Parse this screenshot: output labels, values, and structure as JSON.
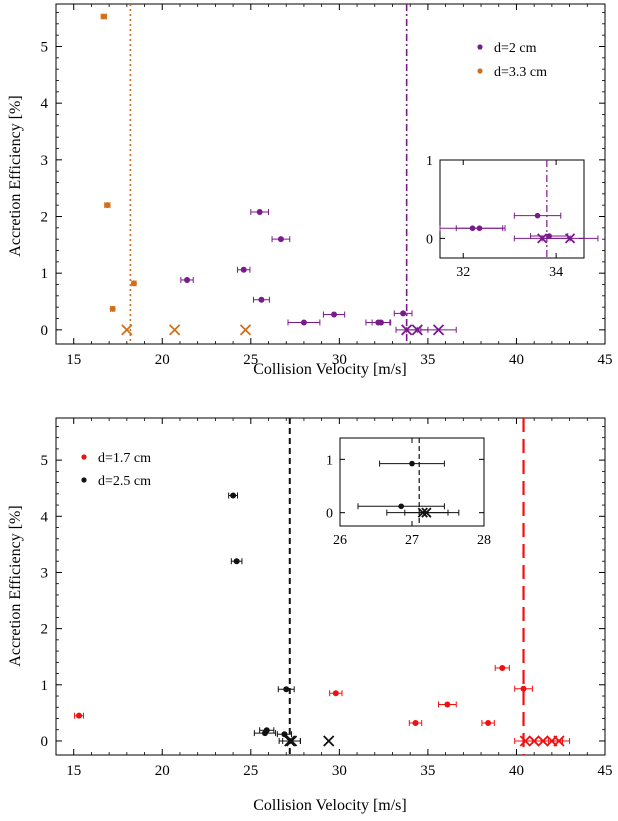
{
  "colors": {
    "purple": "#7a1a8c",
    "orange": "#d0701c",
    "red": "#ee1111",
    "black": "#111111"
  },
  "chart_data": [
    {
      "type": "scatter",
      "title": "",
      "xlabel": "Collision Velocity [m/s]",
      "ylabel": "Accretion Efficiency [%]",
      "xlim": [
        14,
        45
      ],
      "ylim": [
        -0.25,
        5.75
      ],
      "xticks": [
        15,
        20,
        25,
        30,
        35,
        40,
        45
      ],
      "yticks": [
        0,
        1,
        2,
        3,
        4,
        5
      ],
      "legend_position": "top-right",
      "series": [
        {
          "name": "d=2 cm",
          "color": "#7a1a8c",
          "points": [
            {
              "x": 21.4,
              "y": 0.88,
              "xerr": 0.35
            },
            {
              "x": 24.6,
              "y": 1.06,
              "xerr": 0.35
            },
            {
              "x": 25.5,
              "y": 2.08,
              "xerr": 0.5
            },
            {
              "x": 25.6,
              "y": 0.53,
              "xerr": 0.45
            },
            {
              "x": 26.7,
              "y": 1.6,
              "xerr": 0.5
            },
            {
              "x": 28.0,
              "y": 0.13,
              "xerr": 0.9
            },
            {
              "x": 29.7,
              "y": 0.27,
              "xerr": 0.6
            },
            {
              "x": 32.2,
              "y": 0.13,
              "xerr": 0.7
            },
            {
              "x": 32.35,
              "y": 0.13,
              "xerr": 0.5
            },
            {
              "x": 33.6,
              "y": 0.29,
              "xerr": 0.5
            }
          ],
          "zero_markers": [
            {
              "x": 33.8,
              "y": 0,
              "xerr": 0.6
            },
            {
              "x": 34.4,
              "y": 0,
              "xerr": 0.6
            },
            {
              "x": 35.6,
              "y": 0,
              "xerr": 1.0
            }
          ],
          "threshold_x": 33.8,
          "threshold_style": "dash-dot"
        },
        {
          "name": "d=3.3 cm",
          "color": "#d0701c",
          "points": [
            {
              "x": 16.7,
              "y": 5.53,
              "xerr": 0.15
            },
            {
              "x": 16.9,
              "y": 2.2,
              "xerr": 0.15
            },
            {
              "x": 17.2,
              "y": 0.37,
              "xerr": 0.12
            },
            {
              "x": 18.4,
              "y": 0.82,
              "xerr": 0.12
            }
          ],
          "zero_markers": [
            {
              "x": 18.0,
              "y": 0,
              "xerr": 0
            },
            {
              "x": 20.7,
              "y": 0,
              "xerr": 0
            },
            {
              "x": 24.7,
              "y": 0,
              "xerr": 0
            }
          ],
          "threshold_x": 18.2,
          "threshold_style": "dotted"
        }
      ],
      "inset": {
        "xlim": [
          31.5,
          34.6
        ],
        "ylim": [
          -0.25,
          1.0
        ],
        "xticks": [
          32,
          34
        ],
        "yticks": [
          0,
          1
        ],
        "points": [
          {
            "x": 32.2,
            "y": 0.13,
            "xerr": 0.7
          },
          {
            "x": 32.35,
            "y": 0.13,
            "xerr": 0.5
          },
          {
            "x": 33.6,
            "y": 0.29,
            "xerr": 0.5
          },
          {
            "x": 33.85,
            "y": 0.03,
            "xerr": 0.4
          }
        ],
        "zero_markers": [
          {
            "x": 33.7,
            "y": 0,
            "xerr": 0.6
          },
          {
            "x": 34.3,
            "y": 0,
            "xerr": 0.6
          }
        ],
        "threshold_x": 33.8,
        "color": "#7a1a8c"
      }
    },
    {
      "type": "scatter",
      "title": "",
      "xlabel": "Collision Velocity [m/s]",
      "ylabel": "Accretion Efficiency [%]",
      "xlim": [
        14,
        45
      ],
      "ylim": [
        -0.25,
        5.75
      ],
      "xticks": [
        15,
        20,
        25,
        30,
        35,
        40,
        45
      ],
      "yticks": [
        0,
        1,
        2,
        3,
        4,
        5
      ],
      "legend_position": "top-left",
      "series": [
        {
          "name": "d=1.7 cm",
          "color": "#ee1111",
          "points": [
            {
              "x": 15.3,
              "y": 0.45,
              "xerr": 0.25
            },
            {
              "x": 29.8,
              "y": 0.85,
              "xerr": 0.35
            },
            {
              "x": 34.3,
              "y": 0.32,
              "xerr": 0.35
            },
            {
              "x": 36.1,
              "y": 0.65,
              "xerr": 0.5
            },
            {
              "x": 38.4,
              "y": 0.32,
              "xerr": 0.35
            },
            {
              "x": 39.2,
              "y": 1.3,
              "xerr": 0.4
            },
            {
              "x": 40.4,
              "y": 0.93,
              "xerr": 0.5
            }
          ],
          "zero_markers": [
            {
              "x": 40.5,
              "y": 0,
              "xerr": 0.6
            },
            {
              "x": 41.0,
              "y": 0,
              "xerr": 0.6
            },
            {
              "x": 41.5,
              "y": 0,
              "xerr": 0.6
            },
            {
              "x": 42.0,
              "y": 0,
              "xerr": 0.6
            },
            {
              "x": 42.4,
              "y": 0,
              "xerr": 0.6
            }
          ],
          "threshold_x": 40.4,
          "threshold_style": "long-dash"
        },
        {
          "name": "d=2.5 cm",
          "color": "#111111",
          "points": [
            {
              "x": 24.0,
              "y": 4.37,
              "xerr": 0.25
            },
            {
              "x": 24.2,
              "y": 3.2,
              "xerr": 0.3
            },
            {
              "x": 25.8,
              "y": 0.14,
              "xerr": 0.6
            },
            {
              "x": 25.9,
              "y": 0.19,
              "xerr": 0.4
            },
            {
              "x": 26.9,
              "y": 0.12,
              "xerr": 0.4
            },
            {
              "x": 27.0,
              "y": 0.92,
              "xerr": 0.45
            }
          ],
          "zero_markers": [
            {
              "x": 27.2,
              "y": 0,
              "xerr": 0.6
            },
            {
              "x": 27.3,
              "y": 0,
              "xerr": 0.5
            },
            {
              "x": 29.4,
              "y": 0,
              "xerr": 0
            }
          ],
          "threshold_x": 27.2,
          "threshold_style": "dashed"
        }
      ],
      "inset": {
        "xlim": [
          26.0,
          28.0
        ],
        "ylim": [
          -0.25,
          1.4
        ],
        "xticks": [
          26,
          27,
          28
        ],
        "yticks": [
          0,
          1
        ],
        "points": [
          {
            "x": 27.0,
            "y": 0.92,
            "xerr": 0.45
          },
          {
            "x": 26.85,
            "y": 0.12,
            "xerr": 0.6
          }
        ],
        "zero_markers": [
          {
            "x": 27.15,
            "y": 0,
            "xerr": 0.5
          },
          {
            "x": 27.2,
            "y": 0,
            "xerr": 0.3
          }
        ],
        "threshold_x": 27.1,
        "color": "#111111"
      }
    }
  ]
}
